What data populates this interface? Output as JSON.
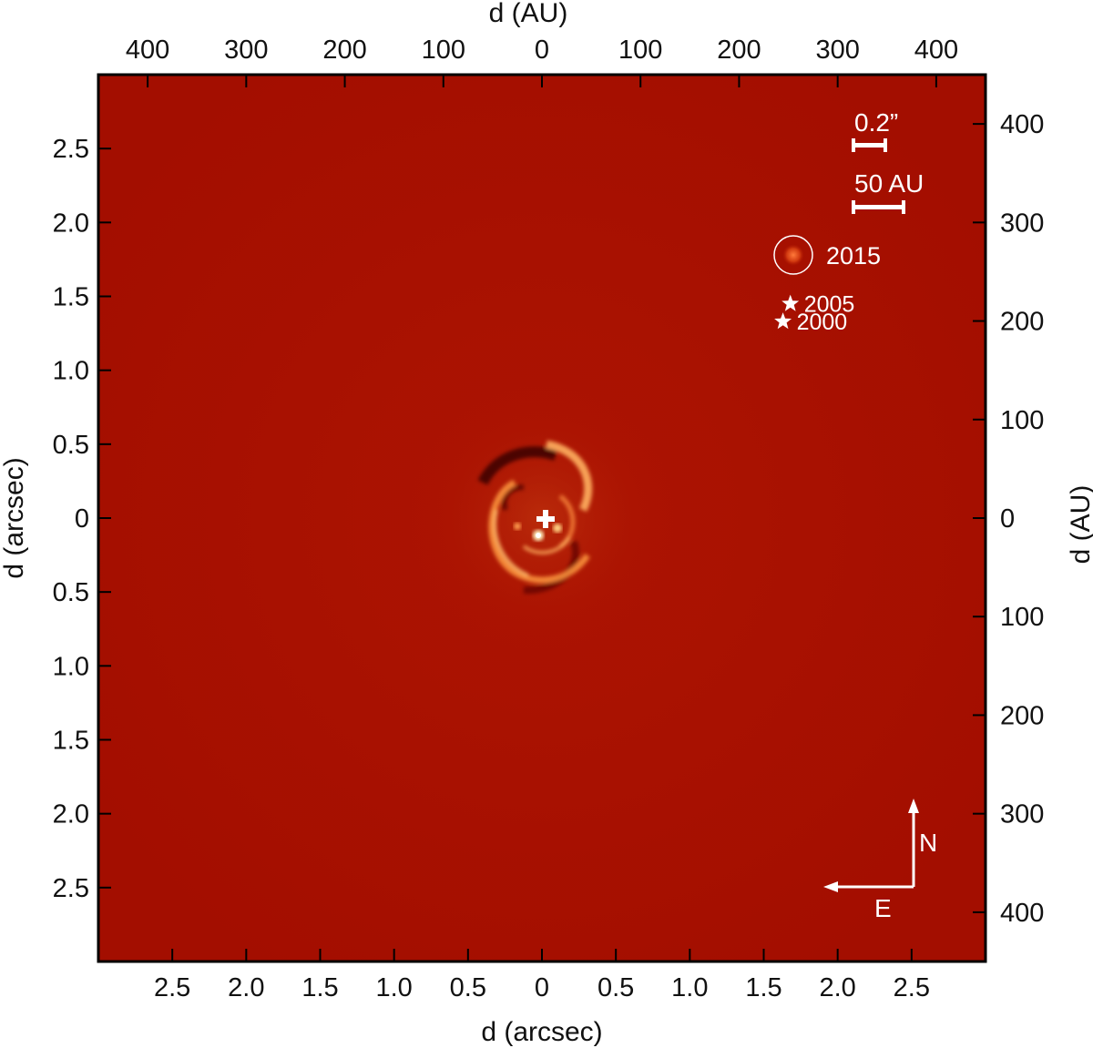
{
  "image": {
    "description_type": "astronomical high-contrast image",
    "colors": {
      "background": "#a80f00",
      "frame": "#000000",
      "annotation": "#ffffff",
      "disk_bright": "#ffb060"
    }
  },
  "axes": {
    "bottom": {
      "label": "d (arcsec)",
      "range": [
        -3.0,
        3.0
      ],
      "ticks": [
        {
          "value": -2.5,
          "label": "2.5"
        },
        {
          "value": -2.0,
          "label": "2.0"
        },
        {
          "value": -1.5,
          "label": "1.5"
        },
        {
          "value": -1.0,
          "label": "1.0"
        },
        {
          "value": -0.5,
          "label": "0.5"
        },
        {
          "value": 0.0,
          "label": "0"
        },
        {
          "value": 0.5,
          "label": "0.5"
        },
        {
          "value": 1.0,
          "label": "1.0"
        },
        {
          "value": 1.5,
          "label": "1.5"
        },
        {
          "value": 2.0,
          "label": "2.0"
        },
        {
          "value": 2.5,
          "label": "2.5"
        }
      ]
    },
    "left": {
      "label": "d (arcsec)",
      "range": [
        -3.0,
        3.0
      ],
      "ticks": [
        {
          "value": 2.5,
          "label": "2.5"
        },
        {
          "value": 2.0,
          "label": "2.0"
        },
        {
          "value": 1.5,
          "label": "1.5"
        },
        {
          "value": 1.0,
          "label": "1.0"
        },
        {
          "value": 0.5,
          "label": "0.5"
        },
        {
          "value": 0.0,
          "label": "0"
        },
        {
          "value": -0.5,
          "label": "0.5"
        },
        {
          "value": -1.0,
          "label": "1.0"
        },
        {
          "value": -1.5,
          "label": "1.5"
        },
        {
          "value": -2.0,
          "label": "2.0"
        },
        {
          "value": -2.5,
          "label": "2.5"
        }
      ]
    },
    "top": {
      "label": "d (AU)",
      "range": [
        -450,
        450
      ],
      "ticks": [
        {
          "value": -400,
          "label": "400"
        },
        {
          "value": -300,
          "label": "300"
        },
        {
          "value": -200,
          "label": "200"
        },
        {
          "value": -100,
          "label": "100"
        },
        {
          "value": 0,
          "label": "0"
        },
        {
          "value": 100,
          "label": "100"
        },
        {
          "value": 200,
          "label": "200"
        },
        {
          "value": 300,
          "label": "300"
        },
        {
          "value": 400,
          "label": "400"
        }
      ]
    },
    "right": {
      "label": "d (AU)",
      "range": [
        -450,
        450
      ],
      "ticks": [
        {
          "value": 400,
          "label": "400"
        },
        {
          "value": 300,
          "label": "300"
        },
        {
          "value": 200,
          "label": "200"
        },
        {
          "value": 100,
          "label": "100"
        },
        {
          "value": 0,
          "label": "0"
        },
        {
          "value": -100,
          "label": "100"
        },
        {
          "value": -200,
          "label": "200"
        },
        {
          "value": -300,
          "label": "300"
        },
        {
          "value": -400,
          "label": "400"
        }
      ]
    }
  },
  "annotations": {
    "scalebar_arcsec_label": "0.2”",
    "scalebar_au_label": "50 AU",
    "epochs": [
      {
        "label": "2015",
        "marker": "circle",
        "x_arcsec": 1.7,
        "y_arcsec": 1.78
      },
      {
        "label": "2005",
        "marker": "star",
        "x_arcsec": 1.68,
        "y_arcsec": 1.45
      },
      {
        "label": "2000",
        "marker": "star",
        "x_arcsec": 1.63,
        "y_arcsec": 1.33
      }
    ],
    "compass": {
      "north_label": "N",
      "east_label": "E"
    }
  }
}
